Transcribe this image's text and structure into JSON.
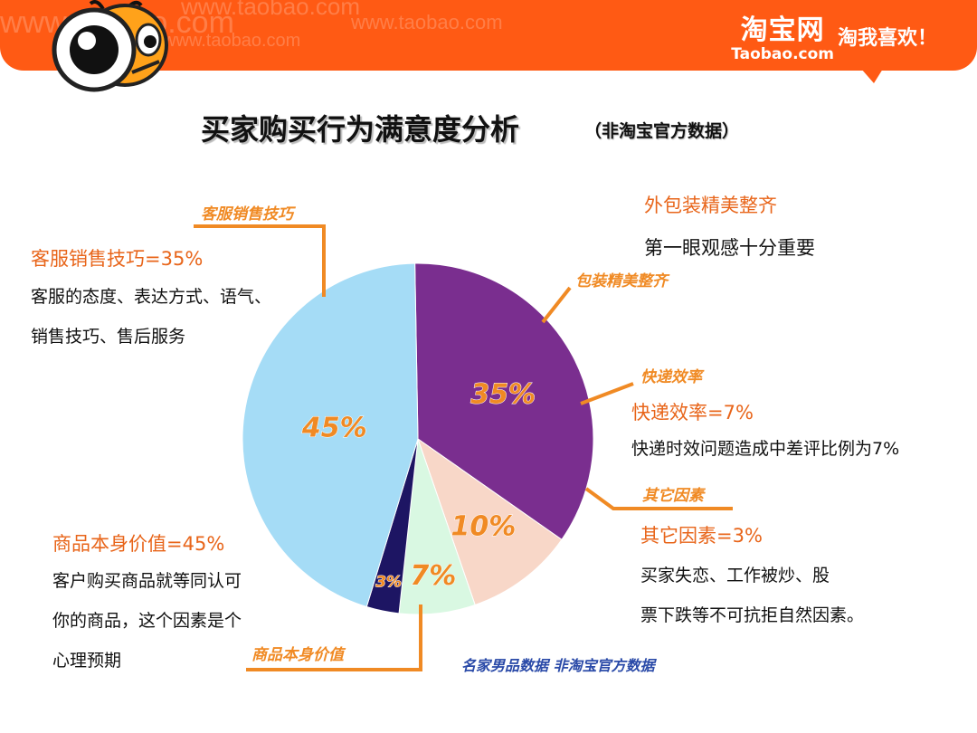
{
  "header": {
    "watermark": "www.taobao.com",
    "brand_name": "淘宝网",
    "brand_domain": "Taobao.com",
    "slogan": "淘我喜欢！"
  },
  "title": "买家购买行为满意度分析",
  "subtitle": "（非淘宝官方数据）",
  "chart_data": {
    "type": "pie",
    "categories": [
      "客服销售技巧",
      "包装精美整齐",
      "快递效率",
      "其它因素",
      "商品本身价值"
    ],
    "values": [
      35,
      10,
      7,
      3,
      45
    ],
    "labels": [
      "35%",
      "10%",
      "7%",
      "3%",
      "45%"
    ],
    "colors": [
      "#7a2e8f",
      "#f8d7c8",
      "#d9f8e2",
      "#1d1563",
      "#a5dcf6"
    ]
  },
  "callouts": {
    "service": {
      "tag": "客服销售技巧",
      "head": "客服销售技巧=35%",
      "lines": [
        "客服的态度、表达方式、语气、",
        "销售技巧、售后服务"
      ]
    },
    "packaging": {
      "tag": "包装精美整齐",
      "head": "外包装精美整齐",
      "lines": [
        "第一眼观感十分重要"
      ]
    },
    "delivery": {
      "tag": "快递效率",
      "head": "快递效率=7%",
      "lines": [
        "快递时效问题造成中差评比例为7%"
      ]
    },
    "other": {
      "tag": "其它因素",
      "head": "其它因素=3%",
      "lines": [
        "买家失恋、工作被炒、股",
        "票下跌等不可抗拒自然因素。"
      ]
    },
    "product": {
      "tag": "商品本身价值",
      "head": "商品本身价值=45%",
      "lines": [
        "客户购买商品就等同认可",
        "你的商品，这个因素是个",
        "心理预期"
      ]
    }
  },
  "footnote": "名家男品数据  非淘宝官方数据"
}
